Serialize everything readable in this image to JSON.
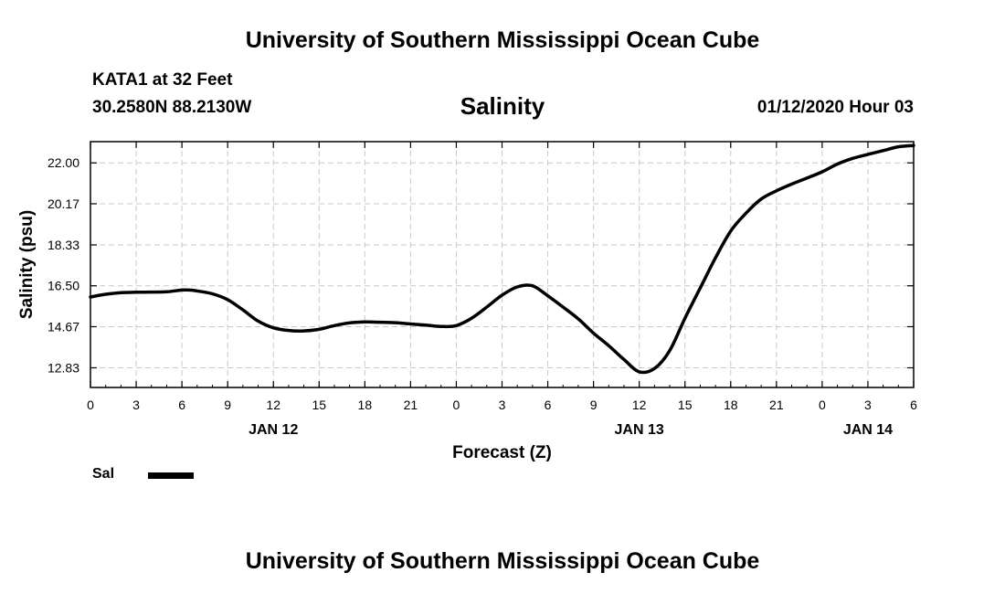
{
  "header": {
    "title": "University of Southern Mississippi Ocean Cube",
    "station": "KATA1 at 32 Feet",
    "coords": "30.2580N 88.2130W",
    "variable": "Salinity",
    "datetime": "01/12/2020 Hour 03"
  },
  "footer": {
    "title": "University of Southern Mississippi Ocean Cube"
  },
  "legend": {
    "label": "Sal"
  },
  "chart_data": {
    "type": "line",
    "ylabel": "Salinity (psu)",
    "xlabel": "Forecast (Z)",
    "xlim": [
      0,
      54
    ],
    "ylim": [
      11.95,
      22.95
    ],
    "yticks": [
      "22.00",
      "20.17",
      "18.33",
      "16.50",
      "14.67",
      "12.83"
    ],
    "xtick_labels": [
      "0",
      "3",
      "6",
      "9",
      "12",
      "15",
      "18",
      "21",
      "0",
      "3",
      "6",
      "9",
      "12",
      "15",
      "18",
      "21",
      "0",
      "3",
      "6"
    ],
    "date_labels": [
      {
        "label": "JAN 12",
        "x": 12
      },
      {
        "label": "JAN 13",
        "x": 36
      },
      {
        "label": "JAN 14",
        "x": 51
      }
    ],
    "grid": true,
    "series": [
      {
        "name": "Sal",
        "color": "#000000",
        "x": [
          0,
          1,
          2,
          3,
          4,
          5,
          6,
          6.5,
          7,
          8,
          9,
          10,
          11,
          12,
          13,
          14,
          15,
          16,
          17,
          18,
          19,
          20,
          21,
          22,
          23,
          24,
          25,
          26,
          27,
          28,
          29,
          30,
          31,
          32,
          33,
          34,
          35,
          36,
          37,
          38,
          39,
          40,
          41,
          42,
          43,
          44,
          45,
          46,
          47,
          48,
          49,
          50,
          51,
          52,
          53,
          54
        ],
        "y": [
          16.0,
          16.12,
          16.19,
          16.21,
          16.22,
          16.23,
          16.31,
          16.31,
          16.27,
          16.14,
          15.88,
          15.42,
          14.92,
          14.62,
          14.5,
          14.48,
          14.55,
          14.72,
          14.84,
          14.88,
          14.87,
          14.85,
          14.79,
          14.74,
          14.68,
          14.72,
          15.05,
          15.55,
          16.08,
          16.45,
          16.5,
          16.05,
          15.55,
          15.02,
          14.38,
          13.82,
          13.2,
          12.65,
          12.8,
          13.6,
          15.05,
          16.4,
          17.75,
          18.95,
          19.75,
          20.38,
          20.75,
          21.05,
          21.32,
          21.6,
          21.95,
          22.2,
          22.38,
          22.55,
          22.72,
          22.78
        ]
      }
    ]
  }
}
